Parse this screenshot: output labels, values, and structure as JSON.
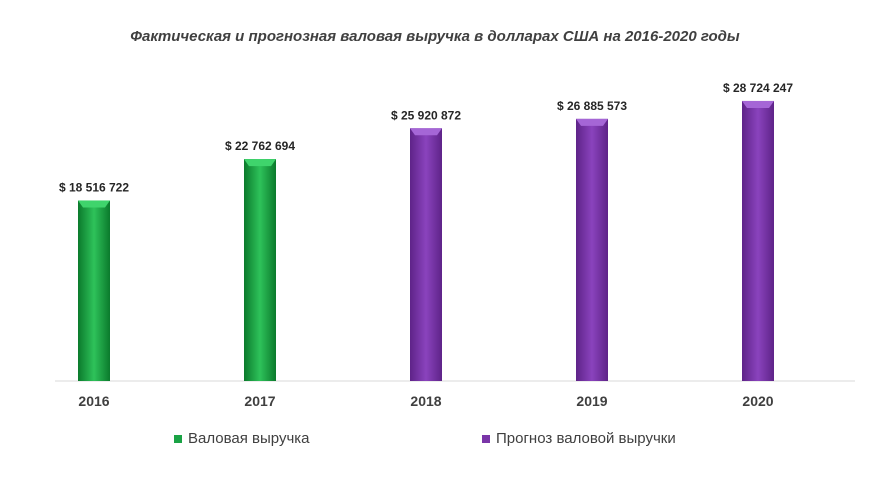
{
  "chart_data": {
    "type": "bar",
    "title": "Фактическая и прогнозная валовая выручка в долларах США на 2016-2020 годы",
    "categories": [
      "2016",
      "2017",
      "2018",
      "2019",
      "2020"
    ],
    "series": [
      {
        "name": "Валовая выручка",
        "color": "#1aa345",
        "values": [
          18516722,
          22762694,
          null,
          null,
          null
        ]
      },
      {
        "name": "Прогноз валовой выручки",
        "color": "#7a35a8",
        "values": [
          null,
          null,
          25920872,
          26885573,
          28724247
        ]
      }
    ],
    "value_labels": [
      "$ 18 516 722",
      "$ 22 762 694",
      "$ 25 920 872",
      "$ 26 885 573",
      "$ 28 724 247"
    ],
    "ylim": [
      0,
      36000000
    ],
    "grid": false,
    "legend_position": "bottom"
  }
}
